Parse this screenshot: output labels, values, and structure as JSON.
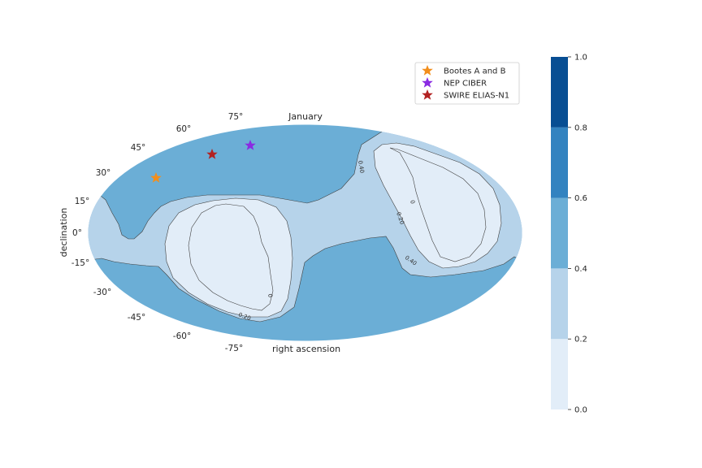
{
  "chart_data": {
    "type": "contour",
    "projection": "mollweide",
    "xlabel": "right ascension",
    "ylabel": "declination",
    "top_label": "January",
    "dec_ticks": [
      "75°",
      "60°",
      "45°",
      "30°",
      "15°",
      "0°",
      "-15°",
      "-30°",
      "-45°",
      "-60°",
      "-75°"
    ],
    "contour_levels": [
      0.0,
      0.2,
      0.4,
      0.6,
      0.8,
      1.0
    ],
    "contour_line_labels": [
      "0",
      "0.20",
      "0.40"
    ],
    "colorbar": {
      "ticks": [
        "0.0",
        "0.2",
        "0.4",
        "0.6",
        "0.8",
        "1.0"
      ],
      "band_colors": [
        "#e2edf8",
        "#b6d3ea",
        "#6baed6",
        "#3383c0",
        "#084e93"
      ]
    },
    "markers": [
      {
        "name": "Bootes A and B",
        "color": "#f28e1c",
        "symbol": "star"
      },
      {
        "name": "NEP CIBER",
        "color": "#8a2be2",
        "symbol": "star"
      },
      {
        "name": "SWIRE ELIAS-N1",
        "color": "#b22222",
        "symbol": "star"
      }
    ],
    "legend_position": "upper-right",
    "grid": false
  }
}
